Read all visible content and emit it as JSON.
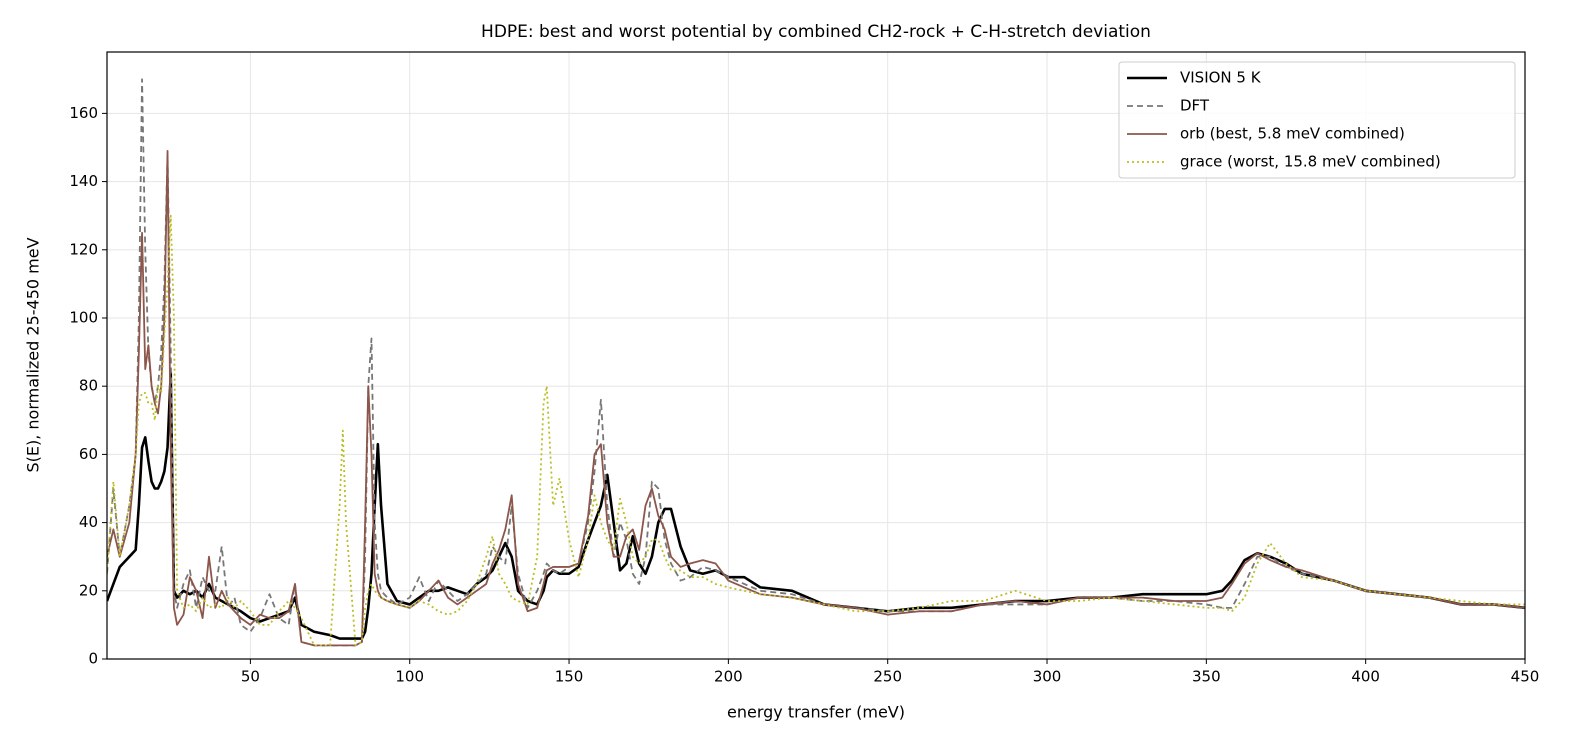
{
  "chart_data": {
    "type": "line",
    "title": "HDPE: best and worst potential by combined CH2-rock + C-H-stretch deviation",
    "x_label": "energy transfer (meV)",
    "y_label": "S(E), normalized 25-450 meV",
    "xlim": [
      5,
      450
    ],
    "ylim": [
      0,
      178
    ],
    "xticks": [
      50,
      100,
      150,
      200,
      250,
      300,
      350,
      400,
      450
    ],
    "yticks": [
      0,
      20,
      40,
      60,
      80,
      100,
      120,
      140,
      160
    ],
    "grid": true,
    "legend": "upper right",
    "x": [
      5,
      7,
      9,
      12,
      14,
      15,
      16,
      17,
      18,
      19,
      20,
      21,
      22,
      23,
      24,
      25,
      26,
      27,
      29,
      31,
      33,
      35,
      37,
      39,
      41,
      43,
      45,
      47,
      50,
      53,
      56,
      59,
      62,
      64,
      66,
      70,
      75,
      78,
      79,
      80,
      83,
      85,
      86,
      87,
      88,
      89,
      90,
      91,
      93,
      96,
      100,
      103,
      106,
      109,
      112,
      115,
      118,
      121,
      124,
      126,
      128,
      130,
      132,
      134,
      137,
      140,
      142,
      143,
      145,
      147,
      150,
      153,
      156,
      158,
      160,
      162,
      164,
      166,
      168,
      170,
      172,
      174,
      176,
      178,
      180,
      182,
      185,
      188,
      192,
      196,
      200,
      205,
      210,
      220,
      230,
      240,
      250,
      260,
      270,
      280,
      290,
      300,
      310,
      320,
      330,
      340,
      350,
      355,
      358,
      362,
      366,
      370,
      375,
      380,
      390,
      400,
      410,
      420,
      430,
      440,
      450
    ],
    "series": [
      {
        "name": "VISION 5 K",
        "color": "#000000",
        "linestyle": "solid",
        "linewidth": 2.6,
        "values": [
          17,
          22,
          27,
          30,
          32,
          45,
          62,
          65,
          58,
          52,
          50,
          50,
          52,
          55,
          62,
          84,
          20,
          18,
          20,
          19,
          20,
          18,
          22,
          18,
          17,
          16,
          15,
          14,
          12,
          11,
          12,
          13,
          14,
          18,
          10,
          8,
          7,
          6,
          6,
          6,
          6,
          6,
          8,
          15,
          25,
          45,
          63,
          45,
          22,
          17,
          16,
          18,
          20,
          20,
          21,
          20,
          19,
          22,
          24,
          26,
          30,
          34,
          30,
          20,
          17,
          16,
          20,
          24,
          26,
          25,
          25,
          27,
          35,
          40,
          45,
          54,
          40,
          26,
          28,
          36,
          28,
          25,
          30,
          40,
          44,
          44,
          33,
          26,
          25,
          26,
          24,
          24,
          21,
          20,
          16,
          15,
          14,
          15,
          15,
          16,
          17,
          17,
          18,
          18,
          19,
          19,
          19,
          20,
          23,
          29,
          31,
          30,
          28,
          25,
          23,
          20,
          19,
          18,
          16,
          16,
          15
        ]
      },
      {
        "name": "DFT",
        "color": "#777777",
        "linestyle": "dashed",
        "linewidth": 1.8,
        "values": [
          25,
          50,
          30,
          45,
          60,
          100,
          170,
          120,
          90,
          80,
          75,
          80,
          90,
          110,
          148,
          90,
          20,
          15,
          22,
          26,
          15,
          24,
          20,
          20,
          33,
          15,
          18,
          10,
          8,
          12,
          19,
          12,
          10,
          22,
          5,
          4,
          4,
          4,
          4,
          4,
          4,
          5,
          30,
          80,
          94,
          40,
          25,
          20,
          18,
          16,
          18,
          24,
          17,
          23,
          20,
          17,
          19,
          22,
          25,
          33,
          30,
          28,
          45,
          25,
          15,
          20,
          25,
          28,
          26,
          25,
          27,
          28,
          40,
          55,
          76,
          45,
          30,
          40,
          35,
          25,
          22,
          30,
          52,
          50,
          35,
          28,
          23,
          24,
          27,
          26,
          24,
          22,
          20,
          19,
          16,
          15,
          14,
          14,
          14,
          16,
          16,
          16,
          18,
          18,
          17,
          17,
          16,
          15,
          15,
          22,
          30,
          30,
          27,
          25,
          23,
          20,
          19,
          18,
          16,
          16,
          15
        ]
      },
      {
        "name": "orb (best, 5.8 meV combined)",
        "color": "#8c564b",
        "linestyle": "solid",
        "linewidth": 1.8,
        "values": [
          30,
          38,
          30,
          40,
          60,
          90,
          125,
          85,
          92,
          80,
          75,
          72,
          80,
          100,
          149,
          60,
          15,
          10,
          13,
          24,
          20,
          12,
          30,
          15,
          20,
          16,
          14,
          12,
          10,
          13,
          12,
          12,
          14,
          22,
          5,
          4,
          4,
          4,
          4,
          4,
          4,
          5,
          40,
          80,
          60,
          25,
          20,
          18,
          17,
          16,
          15,
          17,
          20,
          23,
          18,
          16,
          18,
          20,
          22,
          28,
          32,
          38,
          48,
          22,
          14,
          15,
          22,
          26,
          27,
          27,
          27,
          28,
          42,
          60,
          63,
          40,
          30,
          30,
          36,
          38,
          32,
          45,
          50,
          42,
          38,
          30,
          27,
          28,
          29,
          28,
          23,
          21,
          19,
          18,
          16,
          15,
          13,
          14,
          14,
          16,
          17,
          16,
          18,
          18,
          18,
          17,
          17,
          18,
          22,
          28,
          31,
          29,
          27,
          26,
          23,
          20,
          19,
          18,
          16,
          16,
          15
        ]
      },
      {
        "name": "grace (worst, 15.8 meV combined)",
        "color": "#bcbd22",
        "linestyle": "dotted",
        "linewidth": 1.8,
        "values": [
          25,
          52,
          30,
          45,
          60,
          75,
          78,
          78,
          75,
          75,
          70,
          80,
          78,
          95,
          110,
          130,
          100,
          20,
          15,
          16,
          14,
          18,
          15,
          16,
          15,
          18,
          15,
          17,
          14,
          10,
          10,
          14,
          17,
          15,
          12,
          4,
          4,
          45,
          67,
          40,
          4,
          5,
          15,
          20,
          22,
          20,
          19,
          18,
          17,
          16,
          15,
          17,
          16,
          14,
          13,
          14,
          17,
          22,
          30,
          36,
          25,
          22,
          18,
          17,
          16,
          30,
          75,
          80,
          45,
          53,
          35,
          24,
          35,
          48,
          40,
          35,
          32,
          47,
          40,
          30,
          28,
          30,
          35,
          35,
          30,
          26,
          26,
          24,
          24,
          22,
          21,
          20,
          19,
          18,
          16,
          14,
          14,
          15,
          17,
          17,
          20,
          17,
          17,
          18,
          17,
          16,
          15,
          15,
          14,
          18,
          28,
          34,
          28,
          24,
          23,
          20,
          19,
          18,
          17,
          16,
          16
        ]
      }
    ]
  }
}
